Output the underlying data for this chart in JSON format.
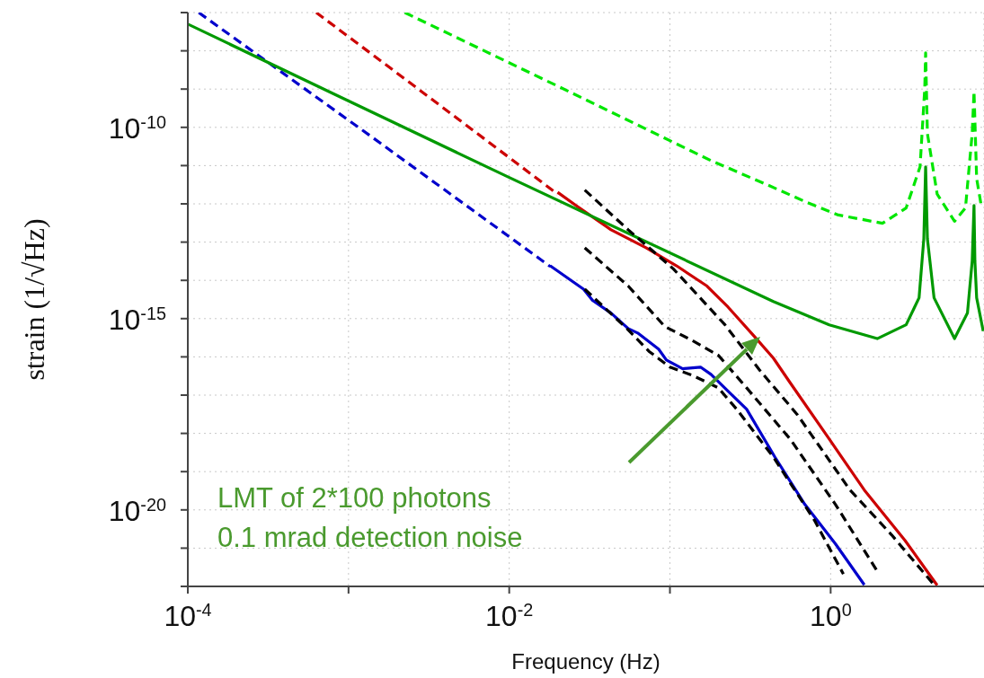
{
  "chart_data": {
    "type": "line",
    "xlabel": "Frequency (Hz)",
    "ylabel": "strain (1/√Hz)",
    "log": "xy",
    "grid": true,
    "xlim": [
      0.0001,
      9
    ],
    "ylim": [
      1e-22,
      1e-07
    ],
    "xticks": [
      {
        "value": 0.0001,
        "label": "10$^{-4}$"
      },
      {
        "value": 0.001,
        "label": null
      },
      {
        "value": 0.01,
        "label": "10$^{-2}$"
      },
      {
        "value": 0.1,
        "label": null
      },
      {
        "value": 1,
        "label": "10$^{0}$"
      }
    ],
    "yticks": [
      {
        "value": 1e-22,
        "label": null
      },
      {
        "value": 1e-21,
        "label": null
      },
      {
        "value": 1e-20,
        "label": "10$^{-20}$"
      },
      {
        "value": 1e-19,
        "label": null
      },
      {
        "value": 1e-18,
        "label": null
      },
      {
        "value": 1e-17,
        "label": null
      },
      {
        "value": 1e-16,
        "label": null
      },
      {
        "value": 1e-15,
        "label": "10$^{-15}$"
      },
      {
        "value": 1e-14,
        "label": null
      },
      {
        "value": 1e-13,
        "label": null
      },
      {
        "value": 1e-12,
        "label": null
      },
      {
        "value": 1e-11,
        "label": null
      },
      {
        "value": 1e-10,
        "label": "10$^{-10}$"
      },
      {
        "value": 1e-09,
        "label": null
      },
      {
        "value": 1e-08,
        "label": null
      },
      {
        "value": 1e-07,
        "label": null
      }
    ],
    "series": [
      {
        "color": "#0000cc",
        "line_style": "dashed",
        "x": [
          0.000117,
          0.00145,
          0.018
        ],
        "values": [
          1e-07,
          5e-11,
          2.3e-14
        ]
      },
      {
        "color": "#0000cc",
        "line_style": "solid",
        "x": [
          0.018,
          0.029,
          0.033,
          0.043,
          0.055,
          0.063,
          0.085,
          0.095,
          0.12,
          0.155,
          0.18,
          0.23,
          0.3,
          0.45,
          0.69,
          1.07,
          1.62
        ],
        "values": [
          2.4e-14,
          5.9e-15,
          3e-15,
          1.4e-15,
          5.5e-16,
          4.2e-16,
          1.6e-16,
          8.3e-17,
          4.9e-17,
          5.4e-17,
          3.5e-17,
          1.26e-17,
          4.3e-18,
          2.4e-19,
          1.4e-20,
          1.3e-21,
          1.1e-22
        ]
      },
      {
        "color": "#cc0000",
        "line_style": "dashed",
        "x": [
          0.00063,
          0.0023,
          0.02
        ],
        "values": [
          1e-07,
          1.7e-09,
          1.8e-12
        ]
      },
      {
        "color": "#cc0000",
        "line_style": "solid",
        "x": [
          0.02,
          0.026,
          0.043,
          0.071,
          0.11,
          0.17,
          0.23,
          0.34,
          0.44,
          0.56,
          0.98,
          1.62,
          2.9,
          4.6
        ],
        "values": [
          2e-12,
          9.1e-13,
          2.1e-13,
          7.1e-14,
          2.4e-14,
          7.1e-15,
          2e-15,
          3.2e-16,
          9.3e-17,
          2.1e-17,
          7.1e-19,
          3.3e-20,
          1.6e-21,
          1.07e-22
        ]
      },
      {
        "color": "#009900",
        "line_style": "solid",
        "x": [
          0.0001,
          0.00083,
          0.01,
          0.44,
          0.98,
          1.95,
          2.95,
          3.55,
          3.8,
          3.9,
          4.0,
          4.4,
          5.9,
          7.1,
          7.6,
          7.8,
          7.9,
          8.1,
          8.9
        ],
        "values": [
          5e-08,
          7.1e-10,
          4.9e-12,
          2.8e-15,
          6.9e-16,
          3e-16,
          6.9e-16,
          3.5e-15,
          1.23e-13,
          9.3e-12,
          1.23e-13,
          3.5e-15,
          3e-16,
          1.4e-15,
          3.2e-14,
          9.1e-13,
          3.2e-14,
          3.5e-15,
          4.7e-16
        ]
      },
      {
        "color": "#00e600",
        "line_style": "dashed",
        "x": [
          0.00224,
          0.02,
          0.18,
          0.4,
          0.72,
          1.1,
          2.1,
          2.95,
          3.6,
          3.85,
          3.9,
          4.0,
          4.6,
          5.9,
          6.9,
          7.6,
          7.8,
          8.1,
          8.7
        ],
        "values": [
          1e-07,
          1.2e-09,
          1.35e-11,
          3.2e-12,
          1.07e-12,
          5.2e-13,
          3.1e-13,
          7.8e-13,
          9.3e-12,
          1.02e-09,
          8.9e-09,
          6.9e-11,
          1.8e-12,
          3.5e-13,
          7.8e-13,
          6.9e-11,
          8.7e-10,
          4.6e-12,
          7.8e-13
        ]
      },
      {
        "color": "#000000",
        "line_style": "dashed",
        "x": [
          0.0295,
          0.055,
          0.105,
          0.22,
          0.36,
          0.62,
          1.32,
          2.4,
          4.4
        ],
        "values": [
          2.3e-12,
          2.1e-13,
          2e-14,
          6.9e-16,
          4.6e-17,
          3.1e-18,
          3.3e-20,
          2.2e-21,
          1.1e-22
        ]
      },
      {
        "color": "#000000",
        "line_style": "dashed",
        "x": [
          0.0295,
          0.055,
          0.093,
          0.135,
          0.2,
          0.3,
          0.56,
          1.07,
          2.0
        ],
        "values": [
          7.1e-14,
          7.1e-15,
          6.2e-16,
          2.8e-16,
          1.1e-16,
          1.55e-17,
          7.1e-19,
          1.4e-20,
          2.1e-22
        ]
      },
      {
        "color": "#000000",
        "line_style": "dashed",
        "x": [
          0.0295,
          0.054,
          0.074,
          0.1,
          0.14,
          0.2,
          0.26,
          0.44,
          0.79,
          1.2
        ],
        "values": [
          5.9e-15,
          5.5e-16,
          1.4e-16,
          5.4e-17,
          3.2e-17,
          1.55e-17,
          4.3e-18,
          2.4e-19,
          5.5e-21,
          2.1e-22
        ]
      }
    ],
    "annotations": [
      "LMT of 2*100 photons\n0.1 mrad detection noise"
    ]
  }
}
